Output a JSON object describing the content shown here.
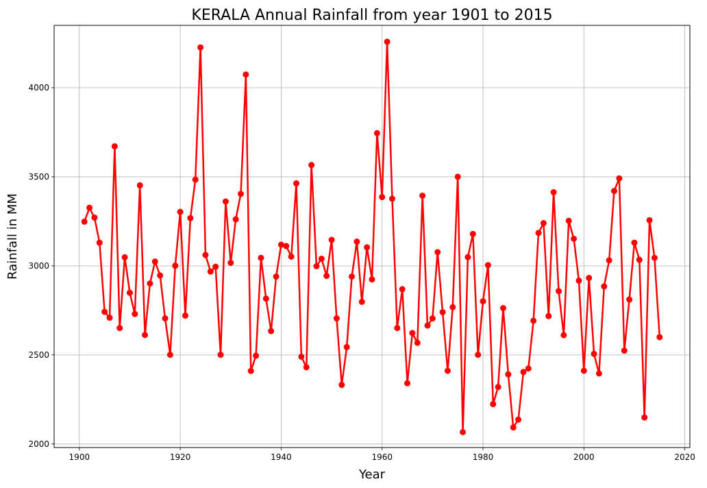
{
  "chart_data": {
    "type": "line",
    "title": "KERALA Annual Rainfall from year 1901 to 2015",
    "xlabel": "Year",
    "ylabel": "Rainfall in MM",
    "xlim": [
      1895,
      2021
    ],
    "ylim": [
      1980,
      4350
    ],
    "xticks": [
      1900,
      1920,
      1940,
      1960,
      1980,
      2000,
      2020
    ],
    "yticks": [
      2000,
      2500,
      3000,
      3500,
      4000
    ],
    "grid": true,
    "color": "#ff0000",
    "marker": "circle",
    "x": [
      1901,
      1902,
      1903,
      1904,
      1905,
      1906,
      1907,
      1908,
      1909,
      1910,
      1911,
      1912,
      1913,
      1914,
      1915,
      1916,
      1917,
      1918,
      1919,
      1920,
      1921,
      1922,
      1923,
      1924,
      1925,
      1926,
      1927,
      1928,
      1929,
      1930,
      1931,
      1932,
      1933,
      1934,
      1935,
      1936,
      1937,
      1938,
      1939,
      1940,
      1941,
      1942,
      1943,
      1944,
      1945,
      1946,
      1947,
      1948,
      1949,
      1950,
      1951,
      1952,
      1953,
      1954,
      1955,
      1956,
      1957,
      1958,
      1959,
      1960,
      1961,
      1962,
      1963,
      1964,
      1965,
      1966,
      1967,
      1968,
      1969,
      1970,
      1971,
      1972,
      1973,
      1974,
      1975,
      1976,
      1977,
      1978,
      1979,
      1980,
      1981,
      1982,
      1983,
      1984,
      1985,
      1986,
      1987,
      1988,
      1989,
      1990,
      1991,
      1992,
      1993,
      1994,
      1995,
      1996,
      1997,
      1998,
      1999,
      2000,
      2001,
      2002,
      2003,
      2004,
      2005,
      2006,
      2007,
      2008,
      2009,
      2010,
      2011,
      2012,
      2013,
      2014,
      2015
    ],
    "y": [
      3248,
      3326,
      3271,
      3130,
      2742,
      2709,
      3671,
      2651,
      3048,
      2849,
      2730,
      3452,
      2612,
      2901,
      3024,
      2946,
      2705,
      2501,
      3001,
      3303,
      2721,
      3268,
      3484,
      4226,
      3061,
      2968,
      2995,
      2501,
      3361,
      3017,
      3261,
      3404,
      4074,
      2410,
      2496,
      3045,
      2816,
      2634,
      2940,
      3119,
      3111,
      3052,
      3463,
      2490,
      2431,
      3566,
      2998,
      3040,
      2944,
      3146,
      2705,
      2332,
      2544,
      2940,
      3136,
      2798,
      3104,
      2924,
      3745,
      3386,
      4258,
      3377,
      2651,
      2869,
      2341,
      2623,
      2568,
      3394,
      2665,
      2705,
      3077,
      2740,
      2411,
      2768,
      3500,
      2067,
      3049,
      3179,
      2501,
      2801,
      3004,
      2224,
      2320,
      2763,
      2391,
      2093,
      2137,
      2404,
      2424,
      2692,
      3185,
      3240,
      2718,
      3413,
      2858,
      2611,
      3253,
      3152,
      2917,
      2411,
      2932,
      2506,
      2396,
      2885,
      3031,
      3420,
      3491,
      2524,
      2811,
      3130,
      3034,
      2149,
      3256,
      3045,
      2600
    ]
  }
}
